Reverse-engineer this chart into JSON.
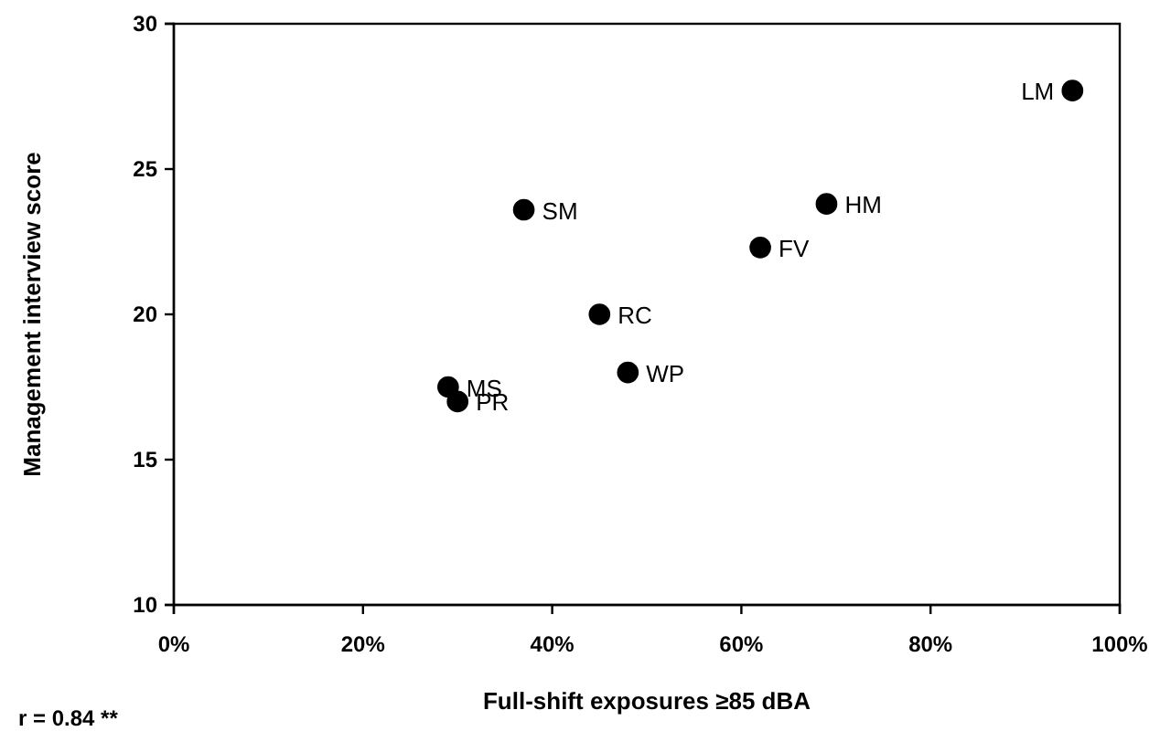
{
  "chart_data": {
    "type": "scatter",
    "xlabel": "Full-shift exposures ≥85 dBA",
    "ylabel": "Management interview score",
    "x": [
      95,
      69,
      62,
      37,
      45,
      48,
      29,
      30
    ],
    "values": [
      27.7,
      23.8,
      22.3,
      23.6,
      20.0,
      18.0,
      17.5,
      17.0
    ],
    "color": "#000000",
    "marker": "circle",
    "grid": false,
    "xlim": [
      0,
      100
    ],
    "xticks": [
      {
        "value": 0,
        "label": "0%"
      },
      {
        "value": 20,
        "label": "20%"
      },
      {
        "value": 40,
        "label": "40%"
      },
      {
        "value": 60,
        "label": "60%"
      },
      {
        "value": 80,
        "label": "80%"
      },
      {
        "value": 100,
        "label": "100%"
      }
    ],
    "ylim": [
      10,
      30
    ],
    "yticks": [
      10,
      15,
      20,
      25,
      30
    ],
    "annotations": [
      {
        "text": "LM",
        "x": 95,
        "y": 27.7
      },
      {
        "text": "HM",
        "x": 69,
        "y": 23.8
      },
      {
        "text": "FV",
        "x": 62,
        "y": 22.3
      },
      {
        "text": "SM",
        "x": 37,
        "y": 23.6
      },
      {
        "text": "RC",
        "x": 45,
        "y": 20.0
      },
      {
        "text": "WP",
        "x": 48,
        "y": 18.0
      },
      {
        "text": "MS",
        "x": 29,
        "y": 17.5
      },
      {
        "text": "PR",
        "x": 30,
        "y": 17.0
      },
      "r = 0.84 **"
    ]
  }
}
